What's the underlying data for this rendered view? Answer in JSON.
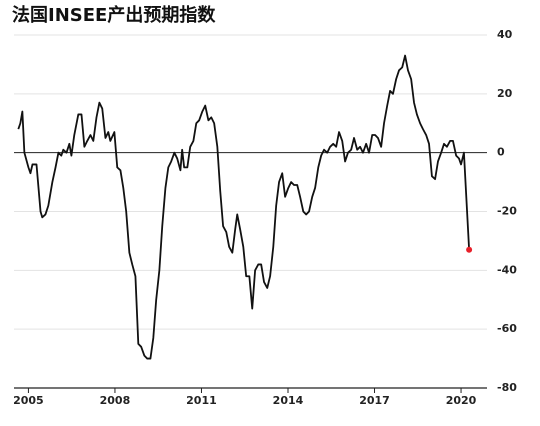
{
  "chart_data": {
    "type": "line",
    "title": "法国INSEE产出预期指数",
    "x": [
      2004.65,
      2004.72,
      2004.79,
      2004.86,
      2005.0,
      2005.07,
      2005.14,
      2005.28,
      2005.42,
      2005.48,
      2005.59,
      2005.69,
      2005.83,
      2005.94,
      2006.04,
      2006.14,
      2006.21,
      2006.32,
      2006.42,
      2006.49,
      2006.59,
      2006.73,
      2006.84,
      2006.94,
      2007.04,
      2007.15,
      2007.25,
      2007.36,
      2007.46,
      2007.56,
      2007.67,
      2007.77,
      2007.84,
      2007.98,
      2008.08,
      2008.19,
      2008.29,
      2008.39,
      2008.5,
      2008.6,
      2008.71,
      2008.81,
      2008.91,
      2009.02,
      2009.12,
      2009.23,
      2009.33,
      2009.43,
      2009.54,
      2009.64,
      2009.75,
      2009.85,
      2009.95,
      2010.06,
      2010.16,
      2010.27,
      2010.33,
      2010.4,
      2010.51,
      2010.61,
      2010.72,
      2010.82,
      2010.92,
      2011.03,
      2011.13,
      2011.24,
      2011.34,
      2011.44,
      2011.55,
      2011.65,
      2011.75,
      2011.86,
      2011.96,
      2012.07,
      2012.17,
      2012.24,
      2012.34,
      2012.45,
      2012.55,
      2012.66,
      2012.76,
      2012.86,
      2012.97,
      2013.07,
      2013.17,
      2013.28,
      2013.38,
      2013.49,
      2013.59,
      2013.69,
      2013.8,
      2013.9,
      2014.01,
      2014.11,
      2014.21,
      2014.32,
      2014.42,
      2014.53,
      2014.63,
      2014.73,
      2014.84,
      2014.94,
      2015.05,
      2015.15,
      2015.25,
      2015.36,
      2015.46,
      2015.57,
      2015.67,
      2015.77,
      2015.88,
      2015.98,
      2016.08,
      2016.19,
      2016.29,
      2016.4,
      2016.5,
      2016.6,
      2016.71,
      2016.81,
      2016.92,
      2017.02,
      2017.12,
      2017.23,
      2017.33,
      2017.44,
      2017.54,
      2017.64,
      2017.75,
      2017.85,
      2017.96,
      2018.06,
      2018.16,
      2018.27,
      2018.37,
      2018.47,
      2018.58,
      2018.68,
      2018.79,
      2018.89,
      2018.99,
      2019.1,
      2019.2,
      2019.31,
      2019.41,
      2019.51,
      2019.62,
      2019.72,
      2019.83,
      2019.93,
      2020.0,
      2020.1,
      2020.28
    ],
    "series": [
      {
        "color": "#111111",
        "values": [
          8,
          10,
          14,
          0,
          -5,
          -7,
          -4,
          -4,
          -20,
          -22,
          -21,
          -18,
          -10,
          -5,
          0,
          -1,
          1,
          0,
          3,
          -1,
          6,
          13,
          13,
          2,
          4,
          6,
          4,
          12,
          17,
          15,
          5,
          7,
          4,
          7,
          -5,
          -6,
          -12,
          -20,
          -34,
          -38,
          -42,
          -65,
          -66,
          -69,
          -70,
          -70,
          -63,
          -50,
          -40,
          -25,
          -12,
          -5,
          -3,
          0,
          -2,
          -6,
          1,
          -5,
          -5,
          2,
          4,
          10,
          11,
          14,
          16,
          11,
          12,
          10,
          2,
          -13,
          -25,
          -27,
          -32,
          -34,
          -26,
          -21,
          -26,
          -32,
          -42,
          -42,
          -53,
          -40,
          -38,
          -38,
          -44,
          -46,
          -42,
          -32,
          -18,
          -10,
          -7,
          -15,
          -12,
          -10,
          -11,
          -11,
          -15,
          -20,
          -21,
          -20,
          -15,
          -12,
          -5,
          -1,
          1,
          0,
          2,
          3,
          2,
          7,
          4,
          -3,
          0,
          1,
          5,
          1,
          2,
          0,
          3,
          0,
          6,
          6,
          5,
          2,
          10,
          16,
          21,
          20,
          25,
          28,
          29,
          33,
          28,
          25,
          17,
          13,
          10,
          8,
          6,
          3,
          -8,
          -9,
          -3,
          0,
          3,
          2,
          4,
          4,
          -1,
          -2,
          -4,
          0,
          -33
        ]
      }
    ],
    "marker_color": "#e8202a",
    "xlim": [
      2004.5,
      2020.9
    ],
    "xticks": [
      2005,
      2008,
      2011,
      2014,
      2017,
      2020
    ],
    "ylim": [
      -80,
      40
    ],
    "yticks": [
      -80,
      -60,
      -40,
      -20,
      0,
      20,
      40
    ],
    "grid": true
  }
}
